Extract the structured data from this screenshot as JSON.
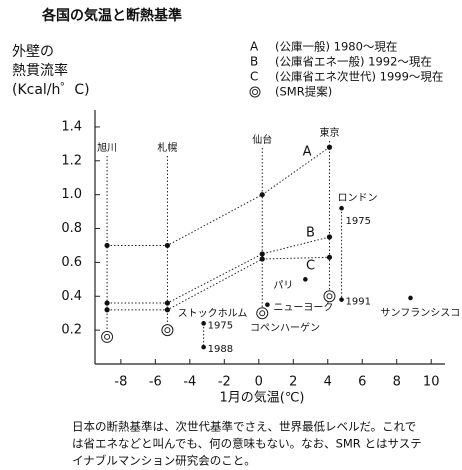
{
  "chart_data": {
    "type": "scatter",
    "title": "各国の気温と断熱基準",
    "y_label": [
      "外壁の",
      "熱貫流率",
      "(Kcal/h゜C)"
    ],
    "x_label": "1月の気温(℃)",
    "xlim": [
      -9.5,
      10.8
    ],
    "ylim": [
      0,
      1.5
    ],
    "xticks": [
      -8,
      -6,
      -4,
      -2,
      0,
      2,
      4,
      6,
      8,
      10
    ],
    "yticks": [
      0.2,
      0.4,
      0.6,
      0.8,
      {
        "value": 1,
        "label": "1.0"
      },
      1.2,
      1.4
    ],
    "cities": [
      {
        "name": "旭川",
        "x": -8.8
      },
      {
        "name": "札幌",
        "x": -5.3
      },
      {
        "name": "仙台",
        "x": 0.2
      },
      {
        "name": "東京",
        "x": 4.1
      }
    ],
    "series": [
      {
        "name": "A",
        "label": "(公庫一般) 1980〜現在",
        "values": [
          0.7,
          0.7,
          1.0,
          1.28
        ]
      },
      {
        "name": "B",
        "label": "(公庫省エネ一般) 1992〜現在",
        "values": [
          0.36,
          0.36,
          0.65,
          0.75
        ]
      },
      {
        "name": "C",
        "label": "(公庫省エネ次世代) 1999〜現在",
        "values": [
          0.32,
          0.32,
          0.62,
          0.63
        ]
      },
      {
        "label": "(SMR提案)",
        "marker": "double-circle",
        "values": [
          0.16,
          0.2,
          0.3,
          0.4
        ]
      }
    ],
    "others": [
      {
        "name": "ロンドン",
        "x": 4.8,
        "points": [
          {
            "label": "1975",
            "y": 0.92
          },
          {
            "label": "1991",
            "y": 0.38
          }
        ]
      },
      {
        "name": "パリ",
        "x": 2.7,
        "points": [
          {
            "y": 0.5
          }
        ]
      },
      {
        "name": "ニューヨーク",
        "x": 0.5,
        "points": [
          {
            "y": 0.35
          }
        ]
      },
      {
        "name": "サンフランシスコ",
        "x": 8.8,
        "points": [
          {
            "y": 0.39
          }
        ]
      },
      {
        "name": "ストックホルム",
        "x": -3.2,
        "points": [
          {
            "label": "1975",
            "y": 0.24
          },
          {
            "label": "1988",
            "y": 0.1
          }
        ]
      },
      {
        "name": "コペンハーゲン"
      }
    ],
    "footnote": [
      "日本の断熱基準は、次世代基準でさえ、世界最低レベルだ。これで",
      "は省エネなどと叫んでも、何の意味もない。なお、SMR とはサステ",
      "イナブルマンション研究会のこと。"
    ]
  }
}
